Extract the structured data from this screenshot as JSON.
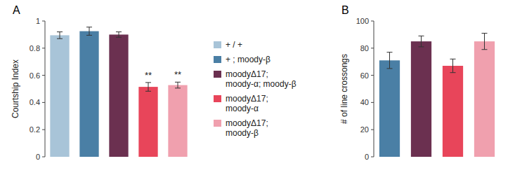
{
  "chart_data": [
    {
      "type": "bar",
      "title": "A",
      "ylabel": "Courtship Index",
      "categories": [
        null
      ],
      "series": [
        {
          "name": "+ / +",
          "color": "#a8c4d8",
          "values": [
            0.895
          ],
          "errors": [
            0.025
          ]
        },
        {
          "name": "+ ; moody-β",
          "color": "#4a7fa5",
          "values": [
            0.925
          ],
          "errors": [
            0.03
          ]
        },
        {
          "name": "moodyΔ17;\nmoody-α; moody-β",
          "color": "#6b3050",
          "values": [
            0.9
          ],
          "errors": [
            0.02
          ]
        },
        {
          "name": "moodyΔ17;\nmoody-α",
          "color": "#e8455a",
          "values": [
            0.515
          ],
          "errors": [
            0.032
          ],
          "annotation": "**"
        },
        {
          "name": "moodyΔ17;\nmoody-β",
          "color": "#f0a0ae",
          "values": [
            0.528
          ],
          "errors": [
            0.022
          ],
          "annotation": "**"
        }
      ],
      "ylim": [
        0,
        1.0
      ],
      "yticks": [
        0,
        0.2,
        0.4,
        0.6,
        0.8,
        1
      ],
      "tick_labels": "y",
      "legend": "right"
    },
    {
      "type": "bar",
      "title": "B",
      "ylabel": "# of line crossongs",
      "categories": [
        null
      ],
      "series": [
        {
          "color": "#4a7fa5",
          "values": [
            71
          ],
          "errors": [
            6
          ]
        },
        {
          "color": "#6b3050",
          "values": [
            85
          ],
          "errors": [
            4
          ]
        },
        {
          "color": "#e8455a",
          "values": [
            67
          ],
          "errors": [
            5
          ]
        },
        {
          "color": "#f0a0ae",
          "values": [
            85
          ],
          "errors": [
            6
          ]
        }
      ],
      "ylim": [
        0,
        100
      ],
      "yticks": [
        0,
        20,
        40,
        60,
        80,
        100
      ],
      "tick_labels": "y"
    }
  ]
}
